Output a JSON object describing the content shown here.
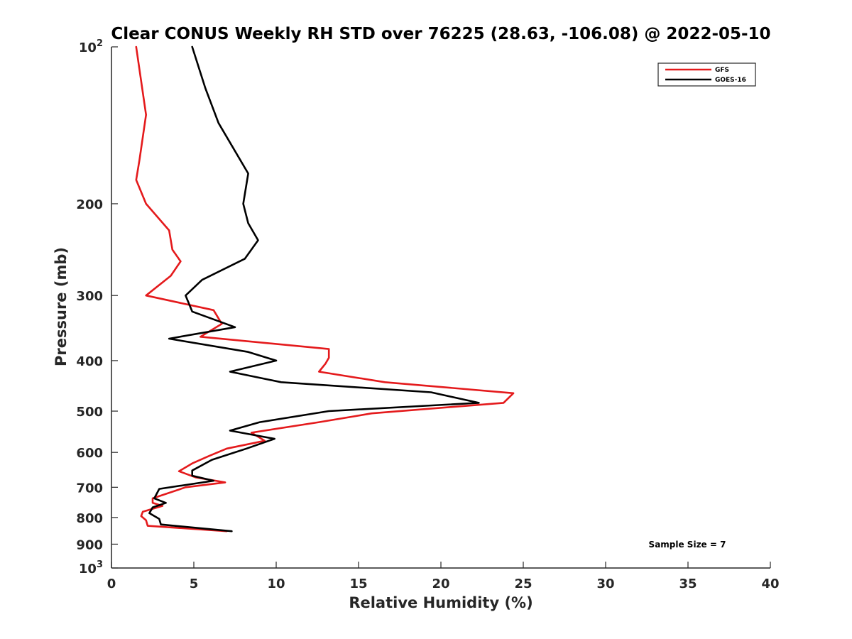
{
  "chart_data": {
    "type": "line",
    "title": "Clear CONUS Weekly RH STD over 76225 (28.63, -106.08) @ 2022-05-10",
    "xlabel": "Relative Humidity (%)",
    "ylabel": "Pressure (mb)",
    "xlim": [
      0,
      40
    ],
    "ylim": [
      100,
      1000
    ],
    "y_scale": "log",
    "y_reversed": true,
    "x_ticks": [
      0,
      5,
      10,
      15,
      20,
      25,
      30,
      35,
      40
    ],
    "y_ticks": [
      {
        "value": 100,
        "base": "10",
        "exp": "2"
      },
      {
        "value": 200,
        "label": "200"
      },
      {
        "value": 300,
        "label": "300"
      },
      {
        "value": 400,
        "label": "400"
      },
      {
        "value": 500,
        "label": "500"
      },
      {
        "value": 600,
        "label": "600"
      },
      {
        "value": 700,
        "label": "700"
      },
      {
        "value": 800,
        "label": "800"
      },
      {
        "value": 900,
        "label": "900"
      },
      {
        "value": 1000,
        "base": "10",
        "exp": "3"
      }
    ],
    "grid": false,
    "legend_position": "top-right",
    "annotation": "Sample Size = 7",
    "series": [
      {
        "name": "GFS",
        "color": "#e41a1c",
        "points": [
          [
            1.5,
            100
          ],
          [
            2.1,
            135
          ],
          [
            1.7,
            165
          ],
          [
            1.5,
            180
          ],
          [
            2.1,
            200
          ],
          [
            3.5,
            225
          ],
          [
            3.7,
            245
          ],
          [
            4.2,
            258
          ],
          [
            3.6,
            275
          ],
          [
            2.1,
            300
          ],
          [
            6.2,
            320
          ],
          [
            6.7,
            340
          ],
          [
            5.4,
            360
          ],
          [
            13.2,
            380
          ],
          [
            13.2,
            395
          ],
          [
            13.0,
            405
          ],
          [
            12.6,
            420
          ],
          [
            16.6,
            440
          ],
          [
            24.4,
            462
          ],
          [
            23.8,
            482
          ],
          [
            15.8,
            505
          ],
          [
            12.6,
            525
          ],
          [
            8.5,
            550
          ],
          [
            9.3,
            570
          ],
          [
            7.0,
            590
          ],
          [
            5.9,
            610
          ],
          [
            4.9,
            630
          ],
          [
            4.1,
            652
          ],
          [
            5.1,
            670
          ],
          [
            6.9,
            685
          ],
          [
            4.5,
            700
          ],
          [
            2.5,
            735
          ],
          [
            2.5,
            750
          ],
          [
            3.1,
            760
          ],
          [
            1.9,
            780
          ],
          [
            1.8,
            795
          ],
          [
            2.1,
            810
          ],
          [
            2.2,
            830
          ],
          [
            7.0,
            850
          ]
        ]
      },
      {
        "name": "GOES-16",
        "color": "#000000",
        "points": [
          [
            4.9,
            100
          ],
          [
            5.7,
            120
          ],
          [
            6.5,
            140
          ],
          [
            8.3,
            175
          ],
          [
            8.0,
            200
          ],
          [
            8.3,
            218
          ],
          [
            8.9,
            235
          ],
          [
            8.1,
            255
          ],
          [
            5.5,
            280
          ],
          [
            4.5,
            300
          ],
          [
            4.9,
            322
          ],
          [
            7.5,
            345
          ],
          [
            3.5,
            363
          ],
          [
            8.3,
            385
          ],
          [
            10.0,
            400
          ],
          [
            7.2,
            420
          ],
          [
            10.3,
            440
          ],
          [
            19.4,
            460
          ],
          [
            22.3,
            482
          ],
          [
            13.2,
            500
          ],
          [
            9.0,
            525
          ],
          [
            7.2,
            545
          ],
          [
            9.9,
            565
          ],
          [
            8.2,
            590
          ],
          [
            6.1,
            620
          ],
          [
            4.9,
            650
          ],
          [
            4.9,
            665
          ],
          [
            6.2,
            680
          ],
          [
            2.9,
            705
          ],
          [
            2.6,
            735
          ],
          [
            3.3,
            750
          ],
          [
            2.5,
            765
          ],
          [
            2.3,
            785
          ],
          [
            2.9,
            805
          ],
          [
            3.0,
            825
          ],
          [
            7.3,
            850
          ]
        ]
      }
    ]
  }
}
